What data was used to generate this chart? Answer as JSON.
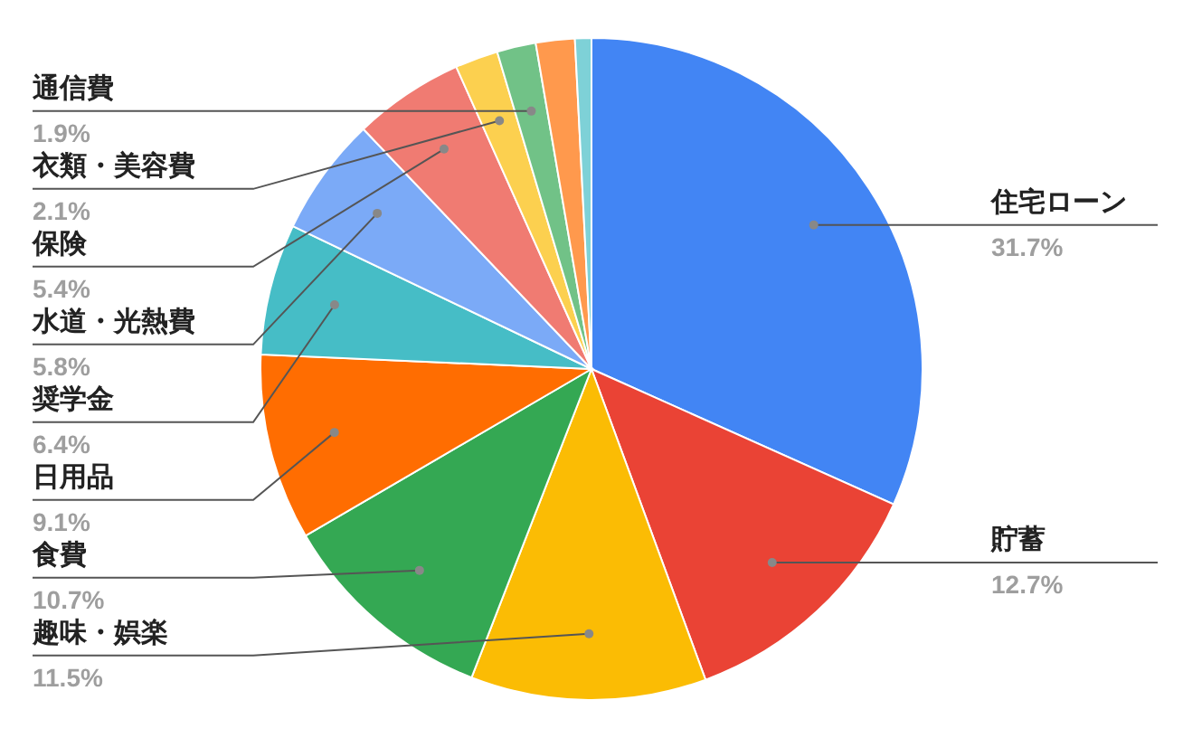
{
  "chart_data": {
    "type": "pie",
    "categories": [
      "住宅ローン",
      "貯蓄",
      "趣味・娯楽",
      "食費",
      "日用品",
      "奨学金",
      "水道・光熱費",
      "保険",
      "衣類・美容費",
      "通信費",
      null,
      null
    ],
    "values": [
      31.7,
      12.7,
      11.5,
      10.7,
      9.1,
      6.4,
      5.8,
      5.4,
      2.1,
      1.9,
      1.9,
      0.8
    ],
    "colors": [
      "#4285f4",
      "#ea4335",
      "#fbbc04",
      "#34a853",
      "#ff6d01",
      "#46bdc6",
      "#7baaf7",
      "#f07b72",
      "#fcd04f",
      "#71c287",
      "#ff994d",
      "#7ed1d7"
    ],
    "value_labels": [
      "31.7%",
      "12.7%",
      "11.5%",
      "10.7%",
      "9.1%",
      "6.4%",
      "5.8%",
      "5.4%",
      "2.1%",
      "1.9%",
      null,
      null
    ]
  }
}
